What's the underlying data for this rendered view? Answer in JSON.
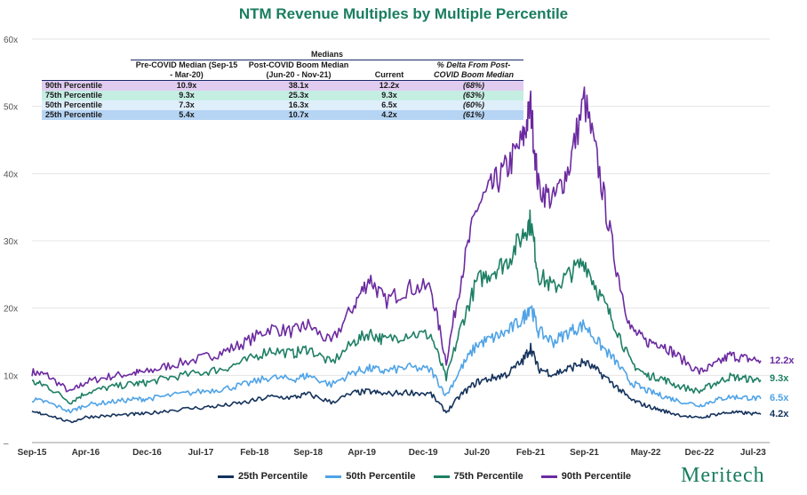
{
  "chart_data": {
    "type": "line",
    "title": "NTM Revenue Multiples by Multiple Percentile",
    "xlabel": "",
    "ylabel": "",
    "ylim": [
      0,
      60
    ],
    "y_ticks": [
      "60x",
      "50x",
      "40x",
      "30x",
      "20x",
      "10x",
      "–"
    ],
    "x_ticks": [
      "Sep-15",
      "Apr-16",
      "Dec-16",
      "Jul-17",
      "Feb-18",
      "Sep-18",
      "Apr-19",
      "Dec-19",
      "Jul-20",
      "Feb-21",
      "Sep-21",
      "May-22",
      "Dec-22",
      "Jul-23"
    ],
    "x": [
      "2015-09",
      "2015-11",
      "2016-02",
      "2016-04",
      "2016-07",
      "2016-10",
      "2016-12",
      "2017-03",
      "2017-07",
      "2017-10",
      "2018-01",
      "2018-04",
      "2018-07",
      "2018-09",
      "2018-12",
      "2019-03",
      "2019-05",
      "2019-07",
      "2019-10",
      "2020-01",
      "2020-03",
      "2020-05",
      "2020-07",
      "2020-09",
      "2020-11",
      "2021-01",
      "2021-02",
      "2021-03",
      "2021-05",
      "2021-07",
      "2021-09",
      "2021-11",
      "2022-01",
      "2022-03",
      "2022-05",
      "2022-07",
      "2022-09",
      "2022-12",
      "2023-02",
      "2023-04",
      "2023-06",
      "2023-08"
    ],
    "grid": true,
    "legend_position": "bottom",
    "series": [
      {
        "name": "25th Percentile",
        "color": "#14325c",
        "values": [
          4.5,
          4.2,
          3.0,
          3.8,
          4.0,
          4.2,
          4.3,
          4.8,
          5.2,
          5.5,
          6.0,
          6.8,
          6.7,
          7.2,
          6.0,
          7.4,
          7.6,
          7.2,
          7.5,
          7.2,
          4.5,
          7.2,
          9.0,
          9.6,
          10.2,
          12.2,
          14.2,
          11.0,
          10.2,
          11.0,
          12.0,
          10.4,
          8.5,
          6.4,
          5.5,
          4.8,
          4.2,
          3.6,
          4.2,
          4.5,
          4.4,
          4.2
        ]
      },
      {
        "name": "50th Percentile",
        "color": "#4fa3e6",
        "values": [
          6.4,
          6.0,
          4.6,
          5.6,
          6.0,
          6.4,
          6.5,
          7.0,
          7.6,
          8.0,
          8.7,
          9.7,
          9.4,
          10.0,
          8.6,
          10.5,
          11.0,
          10.6,
          11.2,
          10.8,
          7.0,
          11.2,
          14.6,
          15.5,
          16.5,
          18.4,
          20.5,
          16.5,
          15.0,
          16.5,
          17.5,
          14.6,
          12.2,
          9.0,
          7.8,
          7.0,
          6.3,
          5.5,
          6.3,
          6.8,
          6.7,
          6.5
        ]
      },
      {
        "name": "75th Percentile",
        "color": "#1e7f64",
        "values": [
          9.0,
          8.4,
          6.0,
          7.4,
          8.2,
          8.7,
          8.9,
          9.7,
          10.4,
          11.0,
          12.2,
          13.8,
          13.2,
          14.0,
          11.8,
          15.0,
          16.3,
          15.2,
          16.2,
          16.0,
          9.5,
          17.5,
          24.0,
          25.5,
          27.0,
          31.0,
          33.0,
          25.0,
          23.0,
          25.0,
          27.0,
          22.0,
          17.5,
          12.0,
          10.0,
          9.6,
          8.5,
          7.6,
          8.8,
          9.8,
          9.5,
          9.3
        ]
      },
      {
        "name": "90th Percentile",
        "color": "#6b2aa0",
        "values": [
          10.5,
          10.0,
          7.5,
          9.0,
          9.8,
          10.3,
          10.5,
          11.5,
          12.5,
          13.5,
          15.0,
          17.0,
          16.5,
          17.5,
          14.8,
          20.5,
          24.5,
          21.0,
          23.0,
          23.0,
          12.0,
          25.0,
          35.0,
          38.0,
          41.0,
          45.0,
          50.0,
          38.0,
          36.0,
          41.0,
          51.0,
          40.0,
          27.0,
          17.0,
          15.0,
          14.8,
          13.0,
          10.5,
          11.5,
          13.0,
          12.5,
          12.2
        ]
      }
    ],
    "end_labels": [
      "12.2x",
      "9.3x",
      "6.5x",
      "4.2x"
    ],
    "medians_table": {
      "group_header": "Medians",
      "columns": [
        "Pre-COVID Median (Sep-15 - Mar-20)",
        "Post-COVID Boom Median (Jun-20 - Nov-21)",
        "Current",
        "% Delta From Post-COVID Boom Median"
      ],
      "rows": [
        {
          "label": "90th Percentile",
          "color": "#e1ccf0",
          "values": [
            "10.9x",
            "38.1x",
            "12.2x",
            "(68%)"
          ]
        },
        {
          "label": "75th Percentile",
          "color": "#c5eee3",
          "values": [
            "9.3x",
            "25.3x",
            "9.3x",
            "(63%)"
          ]
        },
        {
          "label": "50th Percentile",
          "color": "#deeefa",
          "values": [
            "7.3x",
            "16.3x",
            "6.5x",
            "(60%)"
          ]
        },
        {
          "label": "25th Percentile",
          "color": "#b6d5f5",
          "values": [
            "5.4x",
            "10.7x",
            "4.2x",
            "(61%)"
          ]
        }
      ]
    }
  },
  "brand": "Meritech",
  "legend": [
    "25th Percentile",
    "50th Percentile",
    "75th Percentile",
    "90th Percentile"
  ]
}
